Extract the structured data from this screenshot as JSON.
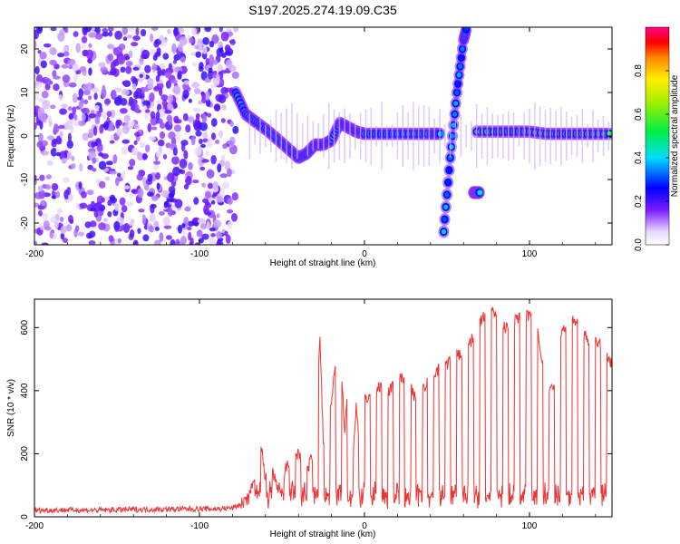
{
  "title": "S197.2025.274.19.09.C35",
  "chart_data": [
    {
      "type": "heatmap",
      "name": "spectrogram",
      "xlabel": "Height of straight line (km)",
      "ylabel": "Frequency (Hz)",
      "xlim": [
        -200,
        150
      ],
      "ylim": [
        -25,
        25
      ],
      "xticks": [
        -200,
        -100,
        0,
        100
      ],
      "yticks": [
        -20,
        -10,
        0,
        10,
        20
      ],
      "colorbar": {
        "label": "Normalized spectral amplitude",
        "range": [
          0,
          1
        ],
        "ticks": [
          0.0,
          0.2,
          0.4,
          0.6,
          0.8
        ],
        "tick_labels": [
          "0.0",
          "0.2",
          "0.4",
          "0.6",
          "0.8"
        ]
      },
      "features": [
        {
          "name": "noise-region",
          "x_range": [
            -200,
            -78
          ],
          "y_range": [
            -25,
            25
          ],
          "amplitude": 0.15
        },
        {
          "name": "signal-track",
          "points": [
            [
              -78,
              10
            ],
            [
              -72,
              5
            ],
            [
              -65,
              3
            ],
            [
              -58,
              1
            ],
            [
              -52,
              -1
            ],
            [
              -46,
              -3
            ],
            [
              -40,
              -5
            ],
            [
              -35,
              -4
            ],
            [
              -30,
              -2
            ],
            [
              -25,
              -2
            ],
            [
              -20,
              -1
            ],
            [
              -15,
              3
            ],
            [
              -10,
              2
            ],
            [
              -5,
              1
            ],
            [
              0,
              0.5
            ],
            [
              10,
              0.5
            ],
            [
              20,
              0.5
            ],
            [
              30,
              0.5
            ],
            [
              40,
              0.5
            ],
            [
              47,
              0.5
            ]
          ],
          "amplitude": 0.35
        },
        {
          "name": "vertical-sweep",
          "points": [
            [
              48,
              -22
            ],
            [
              52,
              -5
            ],
            [
              56,
              10
            ],
            [
              60,
              22
            ],
            [
              62,
              25
            ]
          ],
          "amplitude": 0.3
        },
        {
          "name": "offset-blob",
          "points": [
            [
              66,
              -13
            ],
            [
              68,
              -13
            ],
            [
              70,
              -13
            ]
          ],
          "amplitude": 0.4
        },
        {
          "name": "high-amplitude-band",
          "points": [
            [
              68,
              1
            ],
            [
              80,
              1
            ],
            [
              90,
              1
            ],
            [
              100,
              1
            ],
            [
              110,
              0.5
            ],
            [
              120,
              0.5
            ],
            [
              130,
              0.5
            ],
            [
              140,
              0.5
            ],
            [
              150,
              0.5
            ]
          ],
          "amplitude": 0.55
        }
      ]
    },
    {
      "type": "line",
      "name": "snr",
      "xlabel": "Height of straight line (km)",
      "ylabel": "SNR (10 * v/v)",
      "xlim": [
        -200,
        150
      ],
      "ylim": [
        0,
        690
      ],
      "xticks": [
        -200,
        -100,
        0,
        100
      ],
      "yticks": [
        0,
        200,
        400,
        600
      ],
      "color": "#ee3333",
      "series": [
        {
          "name": "SNR",
          "x": [
            -200,
            -180,
            -160,
            -140,
            -120,
            -100,
            -90,
            -80,
            -75,
            -70,
            -66,
            -64,
            -62,
            -60,
            -56,
            -52,
            -48,
            -44,
            -40,
            -35,
            -30,
            -27,
            -25,
            -20,
            -17,
            -15,
            -12,
            -10,
            -7,
            -5,
            -2,
            0,
            5,
            10,
            15,
            20,
            25,
            30,
            35,
            40,
            45,
            50,
            55,
            60,
            65,
            70,
            75,
            80,
            85,
            90,
            95,
            100,
            105,
            110,
            115,
            120,
            125,
            130,
            135,
            140,
            145,
            150
          ],
          "y": [
            20,
            22,
            21,
            23,
            24,
            25,
            25,
            28,
            40,
            60,
            150,
            240,
            200,
            120,
            140,
            90,
            150,
            180,
            200,
            140,
            220,
            560,
            240,
            360,
            520,
            580,
            260,
            420,
            200,
            350,
            160,
            380,
            380,
            420,
            400,
            430,
            450,
            380,
            400,
            440,
            470,
            480,
            520,
            510,
            560,
            620,
            650,
            640,
            600,
            620,
            630,
            640,
            580,
            420,
            400,
            600,
            620,
            620,
            560,
            560,
            540,
            480
          ]
        }
      ]
    }
  ]
}
